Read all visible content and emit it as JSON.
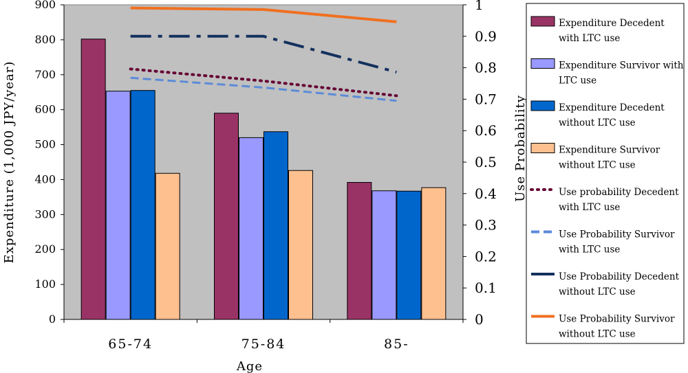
{
  "chart_data": {
    "type": "bar",
    "categories": [
      "65-74",
      "75-84",
      "85-"
    ],
    "xlabel": "Age",
    "ylabel": "Expenditure (1,000 JPY/year)",
    "ylabel_right": "Use Probability",
    "ylim": [
      0,
      900
    ],
    "ylim_right": [
      0,
      1
    ],
    "yticks": [
      "0",
      "100",
      "200",
      "300",
      "400",
      "500",
      "600",
      "700",
      "800",
      "900"
    ],
    "yticks_right": [
      "0",
      "0.1",
      "0.2",
      "0.3",
      "0.4",
      "0.5",
      "0.6",
      "0.7",
      "0.8",
      "0.9",
      "1"
    ],
    "grid": false,
    "background": "#c0c0c0",
    "bar_series": [
      {
        "name_lines": [
          "Expenditure Decedent",
          "with LTC use"
        ],
        "color": "#993366",
        "values": [
          802,
          590,
          392
        ]
      },
      {
        "name_lines": [
          "Expenditure Survivor with",
          "LTC use"
        ],
        "color": "#9999ff",
        "values": [
          653,
          520,
          368
        ]
      },
      {
        "name_lines": [
          "Expenditure Decedent",
          "without LTC use"
        ],
        "color": "#0066cc",
        "values": [
          655,
          537,
          367
        ]
      },
      {
        "name_lines": [
          "Expenditure Survivor",
          "without LTC use"
        ],
        "color": "#ffc090",
        "values": [
          418,
          426,
          377
        ]
      }
    ],
    "line_series": [
      {
        "name_lines": [
          "Use probability Decedent",
          "with LTC use"
        ],
        "color": "#660033",
        "style": "dotted",
        "values": [
          0.796,
          0.758,
          0.711
        ]
      },
      {
        "name_lines": [
          "Use Probability Survivor",
          "with LTC use"
        ],
        "color": "#5b8ad8",
        "style": "dashed",
        "values": [
          0.768,
          0.737,
          0.695
        ]
      },
      {
        "name_lines": [
          "Use Probability Decedent",
          "without LTC use"
        ],
        "color": "#14315e",
        "style": "dashdot",
        "values": [
          0.9,
          0.9,
          0.786
        ]
      },
      {
        "name_lines": [
          "Use Probability Survivor",
          "without LTC use"
        ],
        "color": "#f07020",
        "style": "solid",
        "values": [
          0.99,
          0.985,
          0.946
        ]
      }
    ]
  }
}
